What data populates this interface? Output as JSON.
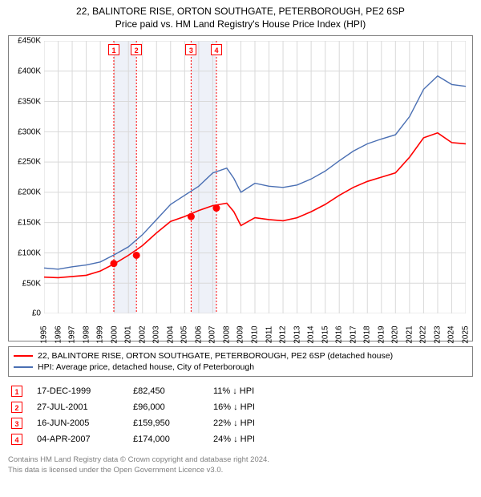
{
  "title": {
    "line1": "22, BALINTORE RISE, ORTON SOUTHGATE, PETERBOROUGH, PE2 6SP",
    "line2": "Price paid vs. HM Land Registry's House Price Index (HPI)"
  },
  "chart": {
    "type": "line",
    "background_color": "#ffffff",
    "border_color": "#808080",
    "grid_color": "#d9d9d9",
    "x_axis": {
      "min": 1995,
      "max": 2025,
      "ticks": [
        1995,
        1996,
        1997,
        1998,
        1999,
        2000,
        2001,
        2002,
        2003,
        2004,
        2005,
        2006,
        2007,
        2008,
        2009,
        2010,
        2011,
        2012,
        2013,
        2014,
        2015,
        2016,
        2017,
        2018,
        2019,
        2020,
        2021,
        2022,
        2023,
        2024,
        2025
      ]
    },
    "y_axis": {
      "min": 0,
      "max": 450000,
      "ticks": [
        0,
        50000,
        100000,
        150000,
        200000,
        250000,
        300000,
        350000,
        400000,
        450000
      ],
      "tick_labels": [
        "£0",
        "£50K",
        "£100K",
        "£150K",
        "£200K",
        "£250K",
        "£300K",
        "£350K",
        "£400K",
        "£450K"
      ],
      "label_fontsize": 10
    },
    "series": [
      {
        "name": "hpi",
        "label": "HPI: Average price, detached house, City of Peterborough",
        "color": "#4a6fb3",
        "line_width": 1.4,
        "points": [
          [
            1995,
            75000
          ],
          [
            1996,
            73000
          ],
          [
            1997,
            77000
          ],
          [
            1998,
            80000
          ],
          [
            1999,
            85000
          ],
          [
            2000,
            97000
          ],
          [
            2001,
            110000
          ],
          [
            2002,
            130000
          ],
          [
            2003,
            155000
          ],
          [
            2004,
            180000
          ],
          [
            2005,
            195000
          ],
          [
            2006,
            210000
          ],
          [
            2007,
            232000
          ],
          [
            2008,
            240000
          ],
          [
            2008.5,
            223000
          ],
          [
            2009,
            200000
          ],
          [
            2010,
            215000
          ],
          [
            2011,
            210000
          ],
          [
            2012,
            208000
          ],
          [
            2013,
            212000
          ],
          [
            2014,
            222000
          ],
          [
            2015,
            235000
          ],
          [
            2016,
            252000
          ],
          [
            2017,
            268000
          ],
          [
            2018,
            280000
          ],
          [
            2019,
            288000
          ],
          [
            2020,
            295000
          ],
          [
            2021,
            325000
          ],
          [
            2022,
            370000
          ],
          [
            2023,
            392000
          ],
          [
            2024,
            378000
          ],
          [
            2025,
            375000
          ]
        ]
      },
      {
        "name": "price_paid",
        "label": "22, BALINTORE RISE, ORTON SOUTHGATE, PETERBOROUGH, PE2 6SP (detached house)",
        "color": "#ff0000",
        "line_width": 1.6,
        "points": [
          [
            1995,
            60000
          ],
          [
            1996,
            59000
          ],
          [
            1997,
            61000
          ],
          [
            1998,
            63000
          ],
          [
            1999,
            70000
          ],
          [
            2000,
            82000
          ],
          [
            2001,
            96000
          ],
          [
            2002,
            112000
          ],
          [
            2003,
            133000
          ],
          [
            2004,
            152000
          ],
          [
            2005,
            160000
          ],
          [
            2006,
            170000
          ],
          [
            2007,
            178000
          ],
          [
            2008,
            182000
          ],
          [
            2008.5,
            168000
          ],
          [
            2009,
            145000
          ],
          [
            2010,
            158000
          ],
          [
            2011,
            155000
          ],
          [
            2012,
            153000
          ],
          [
            2013,
            158000
          ],
          [
            2014,
            168000
          ],
          [
            2015,
            180000
          ],
          [
            2016,
            195000
          ],
          [
            2017,
            208000
          ],
          [
            2018,
            218000
          ],
          [
            2019,
            225000
          ],
          [
            2020,
            232000
          ],
          [
            2021,
            258000
          ],
          [
            2022,
            290000
          ],
          [
            2023,
            298000
          ],
          [
            2024,
            282000
          ],
          [
            2025,
            280000
          ]
        ]
      }
    ],
    "sale_markers": {
      "color": "#ff0000",
      "marker_radius": 4.5,
      "dash_color": "#ff0000",
      "band_color": "#eef1f8",
      "events": [
        {
          "n": "1",
          "x": 1999.96,
          "y": 82450
        },
        {
          "n": "2",
          "x": 2001.57,
          "y": 96000
        },
        {
          "n": "3",
          "x": 2005.46,
          "y": 159950
        },
        {
          "n": "4",
          "x": 2007.26,
          "y": 174000
        }
      ]
    }
  },
  "legend": {
    "border_color": "#808080",
    "rows": [
      {
        "color": "#ff0000",
        "text": "22, BALINTORE RISE, ORTON SOUTHGATE, PETERBOROUGH, PE2 6SP (detached house)"
      },
      {
        "color": "#4a6fb3",
        "text": "HPI: Average price, detached house, City of Peterborough"
      }
    ]
  },
  "sales_table": {
    "rows": [
      {
        "n": "1",
        "date": "17-DEC-1999",
        "price": "£82,450",
        "diff": "11% ↓ HPI"
      },
      {
        "n": "2",
        "date": "27-JUL-2001",
        "price": "£96,000",
        "diff": "16% ↓ HPI"
      },
      {
        "n": "3",
        "date": "16-JUN-2005",
        "price": "£159,950",
        "diff": "22% ↓ HPI"
      },
      {
        "n": "4",
        "date": "04-APR-2007",
        "price": "£174,000",
        "diff": "24% ↓ HPI"
      }
    ]
  },
  "footer": {
    "line1": "Contains HM Land Registry data © Crown copyright and database right 2024.",
    "line2": "This data is licensed under the Open Government Licence v3.0."
  }
}
